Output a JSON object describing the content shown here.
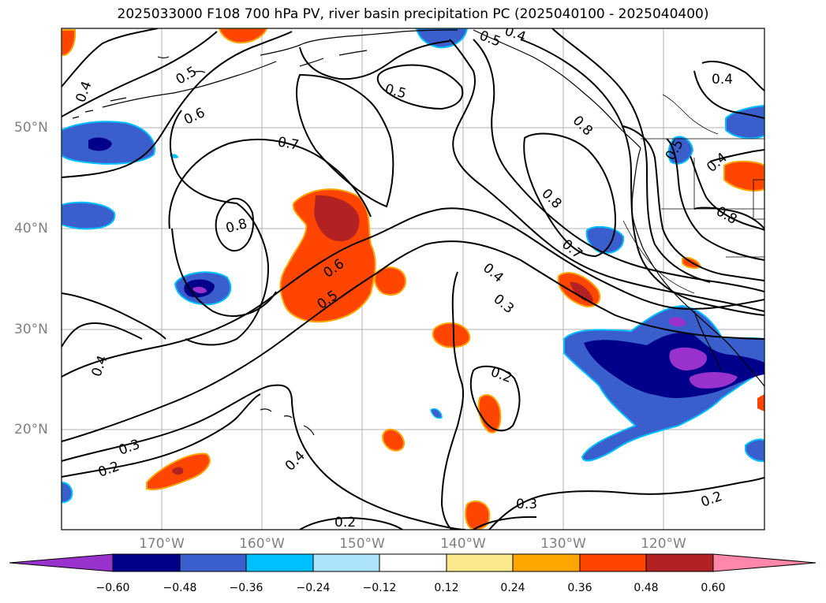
{
  "title": "2025033000 F108 700 hPa PV, river basin precipitation PC (2025040100 - 2025040400)",
  "lat_labels": [
    "50°N",
    "40°N",
    "30°N",
    "20°N"
  ],
  "lon_labels": [
    "170°W",
    "160°W",
    "150°W",
    "140°W",
    "130°W",
    "120°W"
  ],
  "colorbar": {
    "ticks": [
      "−0.60",
      "−0.48",
      "−0.36",
      "−0.24",
      "−0.12",
      "0.12",
      "0.24",
      "0.36",
      "0.48",
      "0.60"
    ],
    "colors": [
      "#9932CC",
      "#00008B",
      "#3A5FCD",
      "#00BFFF",
      "#ADE3FA",
      "#FFFFFF",
      "#FCE88C",
      "#FFA500",
      "#FF4500",
      "#B22222",
      "#FF88AA"
    ]
  },
  "contour_labels": [
    "0.5",
    "0.4",
    "0.6",
    "0.7",
    "0.8",
    "0.5",
    "0.6",
    "0.5",
    "0.4",
    "0.3",
    "0.2",
    "0.4",
    "0.2",
    "0.3",
    "0.2",
    "0.8",
    "0.7",
    "0.4",
    "0.3",
    "0.2",
    "0.4",
    "0.5",
    "0.4",
    "0.8",
    "0.8",
    "0.5",
    "0.4"
  ]
}
